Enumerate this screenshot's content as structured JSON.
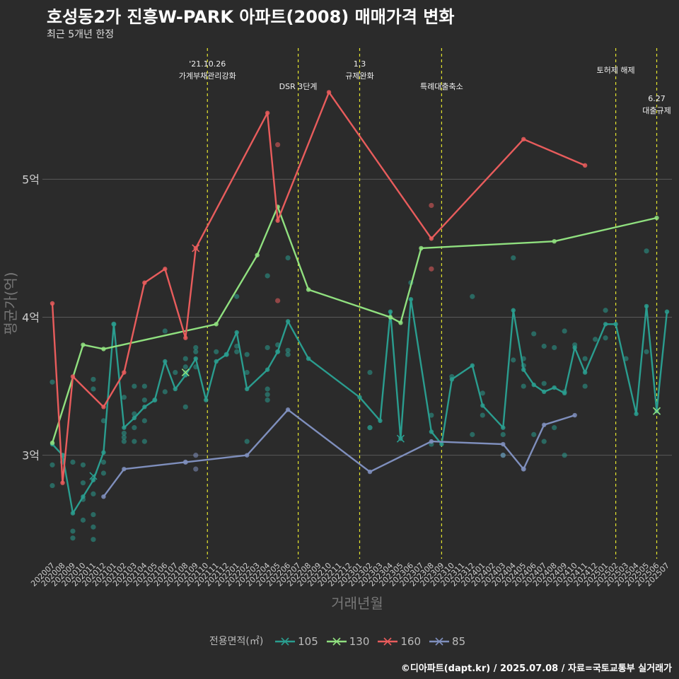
{
  "chart_data": {
    "type": "line",
    "title": "호성동2가 진흥W-PARK 아파트(2008) 매매가격 변화",
    "subtitle": "최근 5개년 한정",
    "xlabel": "거래년월",
    "ylabel": "평균가(억)",
    "caption": "©디아파트(dapt.kr) / 2025.07.08 / 자료=국토교통부 실거래가",
    "legend_title": "전용면적(㎡)",
    "ylim": [
      2.25,
      5.95
    ],
    "yticks": [
      3,
      4,
      5
    ],
    "ytick_labels": [
      "3억",
      "4억",
      "5억"
    ],
    "categories": [
      "202007",
      "202008",
      "202009",
      "202010",
      "202011",
      "202012",
      "202101",
      "202102",
      "202103",
      "202104",
      "202105",
      "202106",
      "202107",
      "202108",
      "202109",
      "202110",
      "202111",
      "202112",
      "202201",
      "202202",
      "202203",
      "202204",
      "202205",
      "202206",
      "202207",
      "202208",
      "202209",
      "202210",
      "202211",
      "202212",
      "202301",
      "202302",
      "202303",
      "202304",
      "202305",
      "202306",
      "202307",
      "202308",
      "202309",
      "202310",
      "202311",
      "202312",
      "202401",
      "202402",
      "202403",
      "202404",
      "202405",
      "202406",
      "202407",
      "202408",
      "202409",
      "202410",
      "202411",
      "202412",
      "202501",
      "202502",
      "202503",
      "202504",
      "202505",
      "202506",
      "202507"
    ],
    "series": [
      {
        "name": "105",
        "color": "#2a9d8f",
        "points": [
          [
            0,
            3.08
          ],
          [
            1,
            3.0
          ],
          [
            2,
            2.58
          ],
          [
            3,
            2.7
          ],
          [
            4,
            2.82
          ],
          [
            5,
            3.02
          ],
          [
            6,
            3.95
          ],
          [
            7,
            3.2
          ],
          [
            8,
            3.27
          ],
          [
            9,
            3.35
          ],
          [
            10,
            3.4
          ],
          [
            11,
            3.68
          ],
          [
            12,
            3.48
          ],
          [
            13,
            3.58
          ],
          [
            14,
            3.7
          ],
          [
            15,
            3.4
          ],
          [
            16,
            3.68
          ],
          [
            17,
            3.73
          ],
          [
            18,
            3.89
          ],
          [
            19,
            3.48
          ],
          [
            21,
            3.62
          ],
          [
            22,
            3.75
          ],
          [
            23,
            3.97
          ],
          [
            25,
            3.7
          ],
          [
            30,
            3.42
          ],
          [
            32,
            3.25
          ],
          [
            33,
            4.04
          ],
          [
            34,
            3.12
          ],
          [
            35,
            4.13
          ],
          [
            37,
            3.17
          ],
          [
            38,
            3.08
          ],
          [
            39,
            3.55
          ],
          [
            41,
            3.65
          ],
          [
            42,
            3.36
          ],
          [
            44,
            3.2
          ],
          [
            45,
            4.05
          ],
          [
            46,
            3.62
          ],
          [
            47,
            3.51
          ],
          [
            48,
            3.46
          ],
          [
            49,
            3.49
          ],
          [
            50,
            3.45
          ],
          [
            51,
            3.78
          ],
          [
            52,
            3.6
          ],
          [
            54,
            3.95
          ],
          [
            55,
            3.95
          ],
          [
            57,
            3.3
          ],
          [
            58,
            4.08
          ],
          [
            59,
            3.32
          ],
          [
            60,
            4.04
          ]
        ]
      },
      {
        "name": "130",
        "color": "#90e07f",
        "points": [
          [
            0,
            3.09
          ],
          [
            3,
            3.8
          ],
          [
            5,
            3.77
          ],
          [
            16,
            3.95
          ],
          [
            20,
            4.45
          ],
          [
            22,
            4.8
          ],
          [
            25,
            4.2
          ],
          [
            33,
            4.0
          ],
          [
            34,
            3.96
          ],
          [
            36,
            4.5
          ],
          [
            49,
            4.55
          ],
          [
            59,
            4.72
          ]
        ]
      },
      {
        "name": "160",
        "color": "#e85c5c",
        "points": [
          [
            0,
            4.1
          ],
          [
            1,
            2.8
          ],
          [
            2,
            3.57
          ],
          [
            5,
            3.35
          ],
          [
            7,
            3.6
          ],
          [
            9,
            4.25
          ],
          [
            11,
            4.35
          ],
          [
            13,
            3.85
          ],
          [
            14,
            4.5
          ],
          [
            21,
            5.48
          ],
          [
            22,
            4.7
          ],
          [
            27,
            5.63
          ],
          [
            37,
            4.57
          ],
          [
            46,
            5.29
          ],
          [
            52,
            5.1
          ]
        ]
      },
      {
        "name": "85",
        "color": "#7f8fbd",
        "points": [
          [
            5,
            2.7
          ],
          [
            7,
            2.9
          ],
          [
            13,
            2.95
          ],
          [
            19,
            3.0
          ],
          [
            23,
            3.33
          ],
          [
            31,
            2.88
          ],
          [
            37,
            3.1
          ],
          [
            44,
            3.08
          ],
          [
            46,
            2.9
          ],
          [
            48,
            3.22
          ],
          [
            51,
            3.29
          ]
        ]
      }
    ],
    "scatter": [
      {
        "series": "105",
        "points": [
          [
            0,
            3.53
          ],
          [
            0,
            2.93
          ],
          [
            0,
            2.78
          ],
          [
            1,
            3.0
          ],
          [
            1,
            2.95
          ],
          [
            2,
            2.95
          ],
          [
            2,
            2.45
          ],
          [
            2,
            2.4
          ],
          [
            3,
            2.93
          ],
          [
            3,
            2.8
          ],
          [
            3,
            2.68
          ],
          [
            3,
            2.53
          ],
          [
            4,
            3.55
          ],
          [
            4,
            3.48
          ],
          [
            4,
            2.72
          ],
          [
            4,
            2.57
          ],
          [
            4,
            2.48
          ],
          [
            4,
            2.39
          ],
          [
            5,
            3.25
          ],
          [
            5,
            2.95
          ],
          [
            5,
            2.87
          ],
          [
            6,
            3.95
          ],
          [
            7,
            3.42
          ],
          [
            7,
            3.16
          ],
          [
            7,
            3.13
          ],
          [
            7,
            3.1
          ],
          [
            8,
            3.5
          ],
          [
            8,
            3.3
          ],
          [
            8,
            3.2
          ],
          [
            8,
            3.1
          ],
          [
            9,
            3.5
          ],
          [
            9,
            3.4
          ],
          [
            9,
            3.25
          ],
          [
            9,
            3.1
          ],
          [
            10,
            3.4
          ],
          [
            11,
            3.9
          ],
          [
            11,
            3.46
          ],
          [
            12,
            3.6
          ],
          [
            13,
            3.7
          ],
          [
            13,
            3.64
          ],
          [
            13,
            3.6
          ],
          [
            13,
            3.35
          ],
          [
            14,
            3.78
          ],
          [
            14,
            3.75
          ],
          [
            14,
            3.64
          ],
          [
            16,
            3.75
          ],
          [
            17,
            3.73
          ],
          [
            18,
            4.15
          ],
          [
            18,
            3.79
          ],
          [
            18,
            3.75
          ],
          [
            19,
            3.73
          ],
          [
            19,
            3.6
          ],
          [
            19,
            3.1
          ],
          [
            21,
            4.3
          ],
          [
            21,
            3.78
          ],
          [
            21,
            3.48
          ],
          [
            21,
            3.44
          ],
          [
            21,
            3.4
          ],
          [
            22,
            3.8
          ],
          [
            22,
            3.75
          ],
          [
            23,
            4.43
          ],
          [
            23,
            3.76
          ],
          [
            23,
            3.73
          ],
          [
            31,
            3.6
          ],
          [
            31,
            3.2
          ],
          [
            31,
            3.2
          ],
          [
            35,
            4.25
          ],
          [
            37,
            3.29
          ],
          [
            37,
            3.08
          ],
          [
            39,
            3.57
          ],
          [
            41,
            4.15
          ],
          [
            41,
            3.15
          ],
          [
            42,
            3.45
          ],
          [
            42,
            3.29
          ],
          [
            44,
            3.15
          ],
          [
            44,
            3.0
          ],
          [
            45,
            4.43
          ],
          [
            45,
            3.69
          ],
          [
            46,
            3.7
          ],
          [
            46,
            3.65
          ],
          [
            46,
            3.5
          ],
          [
            47,
            3.88
          ],
          [
            47,
            3.15
          ],
          [
            48,
            3.79
          ],
          [
            48,
            3.52
          ],
          [
            48,
            3.1
          ],
          [
            49,
            3.78
          ],
          [
            49,
            3.2
          ],
          [
            50,
            3.9
          ],
          [
            50,
            3.46
          ],
          [
            50,
            3.0
          ],
          [
            51,
            3.8
          ],
          [
            52,
            3.7
          ],
          [
            52,
            3.5
          ],
          [
            53,
            3.84
          ],
          [
            54,
            4.05
          ],
          [
            54,
            3.85
          ],
          [
            56,
            3.7
          ],
          [
            58,
            4.48
          ],
          [
            58,
            3.75
          ]
        ]
      },
      {
        "series": "160",
        "points": [
          [
            22,
            5.25
          ],
          [
            22,
            4.12
          ],
          [
            37,
            4.81
          ],
          [
            37,
            4.35
          ]
        ]
      },
      {
        "series": "85",
        "points": [
          [
            13,
            2.95
          ],
          [
            14,
            2.9
          ],
          [
            14,
            3.0
          ],
          [
            44,
            3.0
          ],
          [
            46,
            2.9
          ]
        ]
      }
    ],
    "crosses": [
      {
        "series": "105",
        "x": 4,
        "y": 2.85
      },
      {
        "series": "105",
        "x": 34,
        "y": 3.12
      },
      {
        "series": "105",
        "x": 59,
        "y": 3.32
      },
      {
        "series": "130",
        "x": 59,
        "y": 3.32
      },
      {
        "series": "160",
        "x": 14,
        "y": 4.5
      },
      {
        "series": "130",
        "x": 13,
        "y": 3.6
      }
    ],
    "annotations": [
      {
        "x": 15,
        "lines": [
          "'21.10.26",
          "가계부채관리강화"
        ],
        "row": 0
      },
      {
        "x": 24,
        "lines": [
          "DSR 3단계"
        ],
        "row": 2
      },
      {
        "x": 30,
        "lines": [
          "1.3",
          "규제완화"
        ],
        "row": 0
      },
      {
        "x": 38,
        "lines": [
          "특례대출축소"
        ],
        "row": 2
      },
      {
        "x": 55,
        "lines": [
          "토허제 해제"
        ],
        "row": 1
      },
      {
        "x": 59,
        "lines": [
          "6.27",
          "대출규제"
        ],
        "row": 3
      }
    ],
    "colors": {
      "background": "#2b2b2b",
      "grid": "#5a5a5a",
      "vline": "#e6e62e",
      "axis_text": "#cccccc"
    }
  }
}
